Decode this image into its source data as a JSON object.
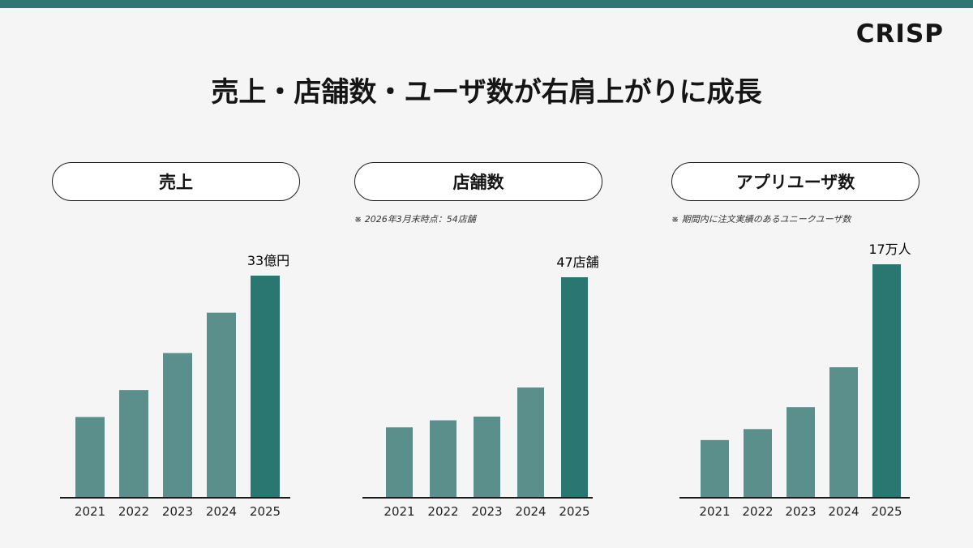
{
  "logo": "CRISP",
  "title": "売上・店舗数・ユーザ数が右肩上がりに成長",
  "colors": {
    "accent": "#2e7672",
    "bar": "#5a8f8c",
    "bar_highlight": "#2a7670",
    "value_label": "#2a7670"
  },
  "chart_data": [
    {
      "type": "bar",
      "title": "売上",
      "note": "",
      "categories": [
        "2021",
        "2022",
        "2023",
        "2024",
        "2025"
      ],
      "values": [
        12,
        16,
        21.5,
        27.5,
        33
      ],
      "value_label": {
        "number": "33",
        "unit": "億円"
      },
      "ylim": [
        0,
        40
      ],
      "grid": false,
      "axis_max_value": 33
    },
    {
      "type": "bar",
      "title": "店舗数",
      "note": "※ 2026年3月末時点：54店舗",
      "categories": [
        "2021",
        "2022",
        "2023",
        "2024",
        "2025"
      ],
      "values": [
        15,
        16.5,
        17.3,
        23.5,
        47
      ],
      "value_label": {
        "number": "47",
        "unit": "店舗"
      },
      "ylim": [
        0,
        50
      ],
      "grid": false,
      "axis_max_value": 47
    },
    {
      "type": "bar",
      "title": "アプリユーザ数",
      "note": "※ 期間内に注文実績のあるユニークユーザ数",
      "categories": [
        "2021",
        "2022",
        "2023",
        "2024",
        "2025"
      ],
      "values": [
        4.2,
        5.0,
        6.6,
        9.5,
        17
      ],
      "value_label": {
        "number": "17",
        "unit": "万人"
      },
      "ylim": [
        0,
        20
      ],
      "grid": false,
      "axis_max_value": 17
    }
  ]
}
